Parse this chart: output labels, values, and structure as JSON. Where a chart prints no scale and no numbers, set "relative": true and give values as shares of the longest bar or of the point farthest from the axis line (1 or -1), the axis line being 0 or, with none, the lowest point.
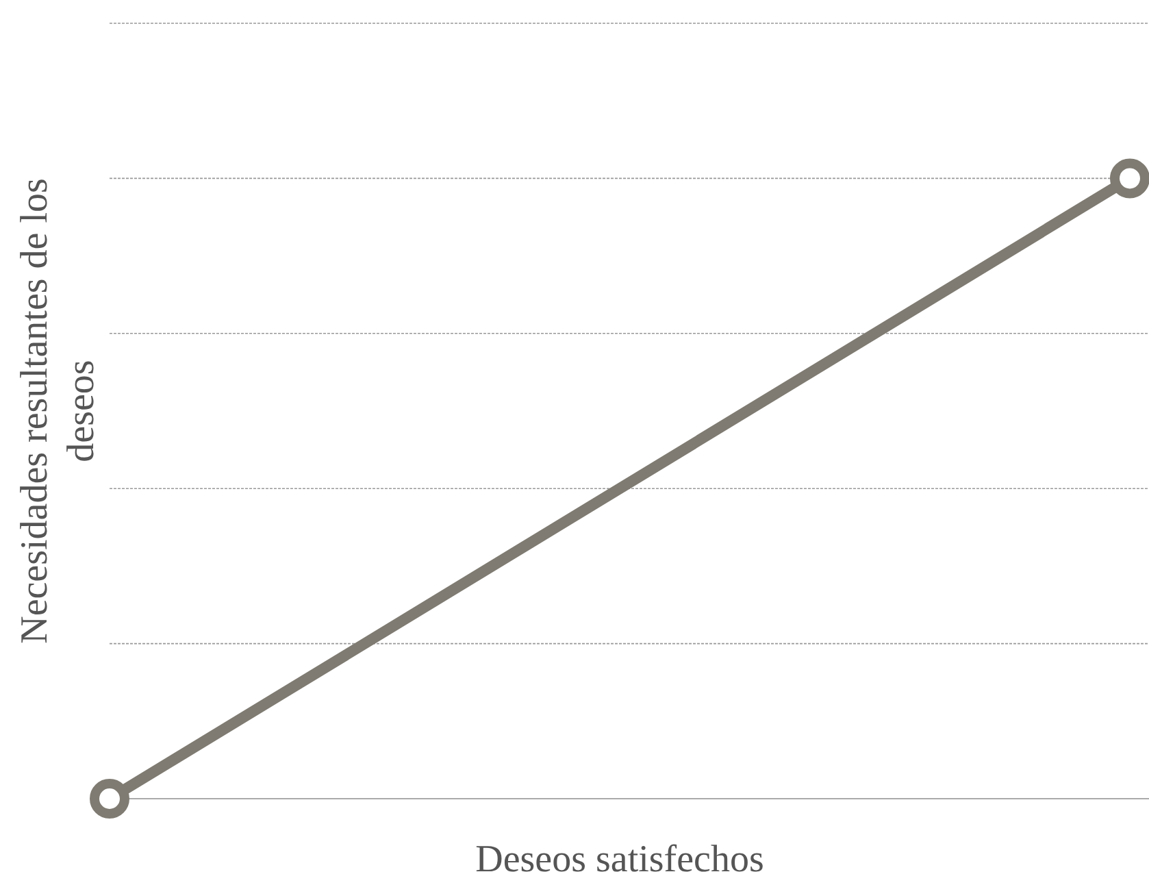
{
  "chart_data": {
    "type": "line",
    "xlabel": "Deseos satisfechos",
    "ylabel": "Necesidades resultantes de los deseos",
    "categories": [
      null,
      null
    ],
    "relative": true,
    "series": [
      {
        "color": "#7f7b72",
        "values": [
          0,
          1
        ]
      }
    ],
    "ref_lines": [
      {
        "axis": "y",
        "value": 0.25,
        "color": "#999999",
        "line_style": "dotted"
      },
      {
        "axis": "y",
        "value": 0.5,
        "color": "#999999",
        "line_style": "dotted"
      },
      {
        "axis": "y",
        "value": 0.75,
        "color": "#999999",
        "line_style": "dotted"
      },
      {
        "axis": "y",
        "value": 1,
        "color": "#999999",
        "line_style": "dotted"
      },
      {
        "axis": "y",
        "value": 1.25,
        "color": "#999999",
        "line_style": "dotted"
      }
    ],
    "marker": "circle",
    "line_style": "solid"
  }
}
